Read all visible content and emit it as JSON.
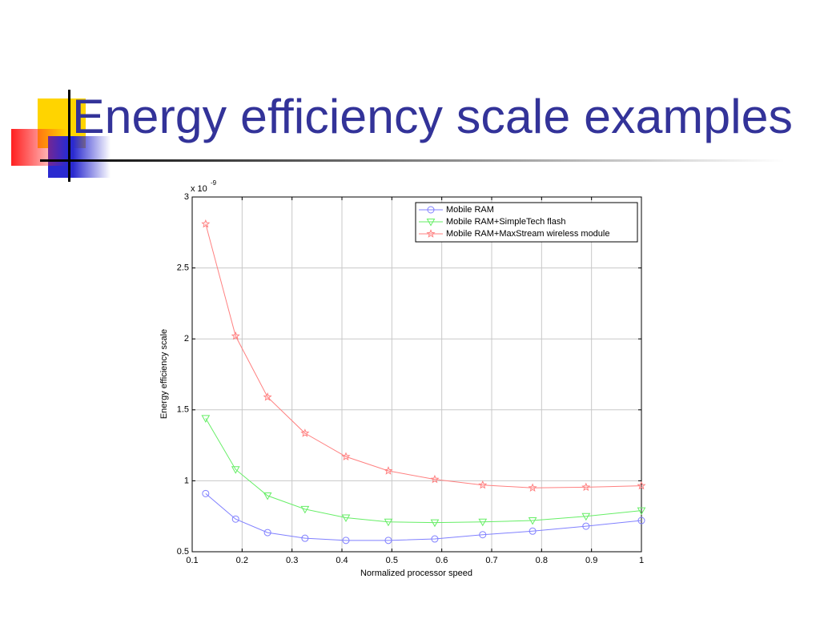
{
  "title": "Energy efficiency scale examples",
  "chart_data": {
    "type": "line",
    "xlabel": "Normalized processor speed",
    "ylabel": "Energy efficiency scale",
    "y_multiplier": {
      "base": "x 10",
      "exponent": "-9"
    },
    "x": [
      0.127,
      0.187,
      0.251,
      0.326,
      0.408,
      0.493,
      0.586,
      0.682,
      0.782,
      0.889,
      1.0
    ],
    "series": [
      {
        "name": "Mobile RAM",
        "color": "#8080ff",
        "marker": "circle",
        "values": [
          0.91,
          0.73,
          0.635,
          0.595,
          0.58,
          0.58,
          0.59,
          0.62,
          0.645,
          0.68,
          0.72
        ]
      },
      {
        "name": "Mobile RAM+SimpleTech flash",
        "color": "#66ee66",
        "marker": "triangle-down",
        "values": [
          1.44,
          1.08,
          0.895,
          0.8,
          0.74,
          0.71,
          0.705,
          0.71,
          0.72,
          0.75,
          0.79
        ]
      },
      {
        "name": "Mobile RAM+MaxStream wireless module",
        "color": "#ff8080",
        "marker": "star",
        "values": [
          2.81,
          2.02,
          1.59,
          1.335,
          1.17,
          1.07,
          1.01,
          0.97,
          0.95,
          0.955,
          0.965
        ]
      }
    ],
    "xlim": [
      0.1,
      1
    ],
    "xticks": [
      0.1,
      0.2,
      0.3,
      0.4,
      0.5,
      0.6,
      0.7,
      0.8,
      0.9,
      1
    ],
    "ylim": [
      0.5,
      3
    ],
    "yticks": [
      0.5,
      1,
      1.5,
      2,
      2.5,
      3
    ],
    "grid": true,
    "legend": "upper right"
  }
}
